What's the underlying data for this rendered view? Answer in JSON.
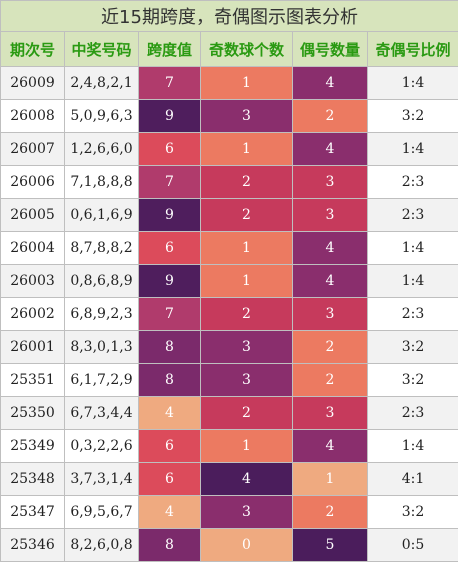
{
  "title": "近15期跨度，奇偶图示图表分析",
  "columns": [
    "期次号",
    "中奖号码",
    "跨度值",
    "奇数球个数",
    "偶号数量",
    "奇偶号比例"
  ],
  "palette": {
    "0": "#f1ae83",
    "1": "#ed7c62",
    "2": "#e8715f",
    "3": "#c83a5b",
    "4": "#f1ae83",
    "5": "#56215f",
    "6": "#dc4b5b",
    "7": "#b13b6b",
    "8": "#7d2a6a",
    "9": "#55215f"
  },
  "col_palette": {
    "odd": {
      "0": "#efaa80",
      "1": "#ec7a61",
      "2": "#c63a5c",
      "3": "#8a2e6d",
      "4": "#4b1d5c"
    },
    "even": {
      "1": "#efaa80",
      "2": "#ec7a61",
      "3": "#c63a5c",
      "4": "#8a2e6d",
      "5": "#4b1d5c"
    }
  },
  "rows": [
    {
      "issue": "26009",
      "numbers": "2,4,8,2,1",
      "span": "7",
      "odd": "1",
      "even": "4",
      "ratio": "1:4"
    },
    {
      "issue": "26008",
      "numbers": "5,0,9,6,3",
      "span": "9",
      "odd": "3",
      "even": "2",
      "ratio": "3:2"
    },
    {
      "issue": "26007",
      "numbers": "1,2,6,6,0",
      "span": "6",
      "odd": "1",
      "even": "4",
      "ratio": "1:4"
    },
    {
      "issue": "26006",
      "numbers": "7,1,8,8,8",
      "span": "7",
      "odd": "2",
      "even": "3",
      "ratio": "2:3"
    },
    {
      "issue": "26005",
      "numbers": "0,6,1,6,9",
      "span": "9",
      "odd": "2",
      "even": "3",
      "ratio": "2:3"
    },
    {
      "issue": "26004",
      "numbers": "8,7,8,8,2",
      "span": "6",
      "odd": "1",
      "even": "4",
      "ratio": "1:4"
    },
    {
      "issue": "26003",
      "numbers": "0,8,6,8,9",
      "span": "9",
      "odd": "1",
      "even": "4",
      "ratio": "1:4"
    },
    {
      "issue": "26002",
      "numbers": "6,8,9,2,3",
      "span": "7",
      "odd": "2",
      "even": "3",
      "ratio": "2:3"
    },
    {
      "issue": "26001",
      "numbers": "8,3,0,1,3",
      "span": "8",
      "odd": "3",
      "even": "2",
      "ratio": "3:2"
    },
    {
      "issue": "25351",
      "numbers": "6,1,7,2,9",
      "span": "8",
      "odd": "3",
      "even": "2",
      "ratio": "3:2"
    },
    {
      "issue": "25350",
      "numbers": "6,7,3,4,4",
      "span": "4",
      "odd": "2",
      "even": "3",
      "ratio": "2:3"
    },
    {
      "issue": "25349",
      "numbers": "0,3,2,2,6",
      "span": "6",
      "odd": "1",
      "even": "4",
      "ratio": "1:4"
    },
    {
      "issue": "25348",
      "numbers": "3,7,3,1,4",
      "span": "6",
      "odd": "4",
      "even": "1",
      "ratio": "4:1"
    },
    {
      "issue": "25347",
      "numbers": "6,9,5,6,7",
      "span": "4",
      "odd": "3",
      "even": "2",
      "ratio": "3:2"
    },
    {
      "issue": "25346",
      "numbers": "8,2,6,0,8",
      "span": "8",
      "odd": "0",
      "even": "5",
      "ratio": "0:5"
    }
  ]
}
